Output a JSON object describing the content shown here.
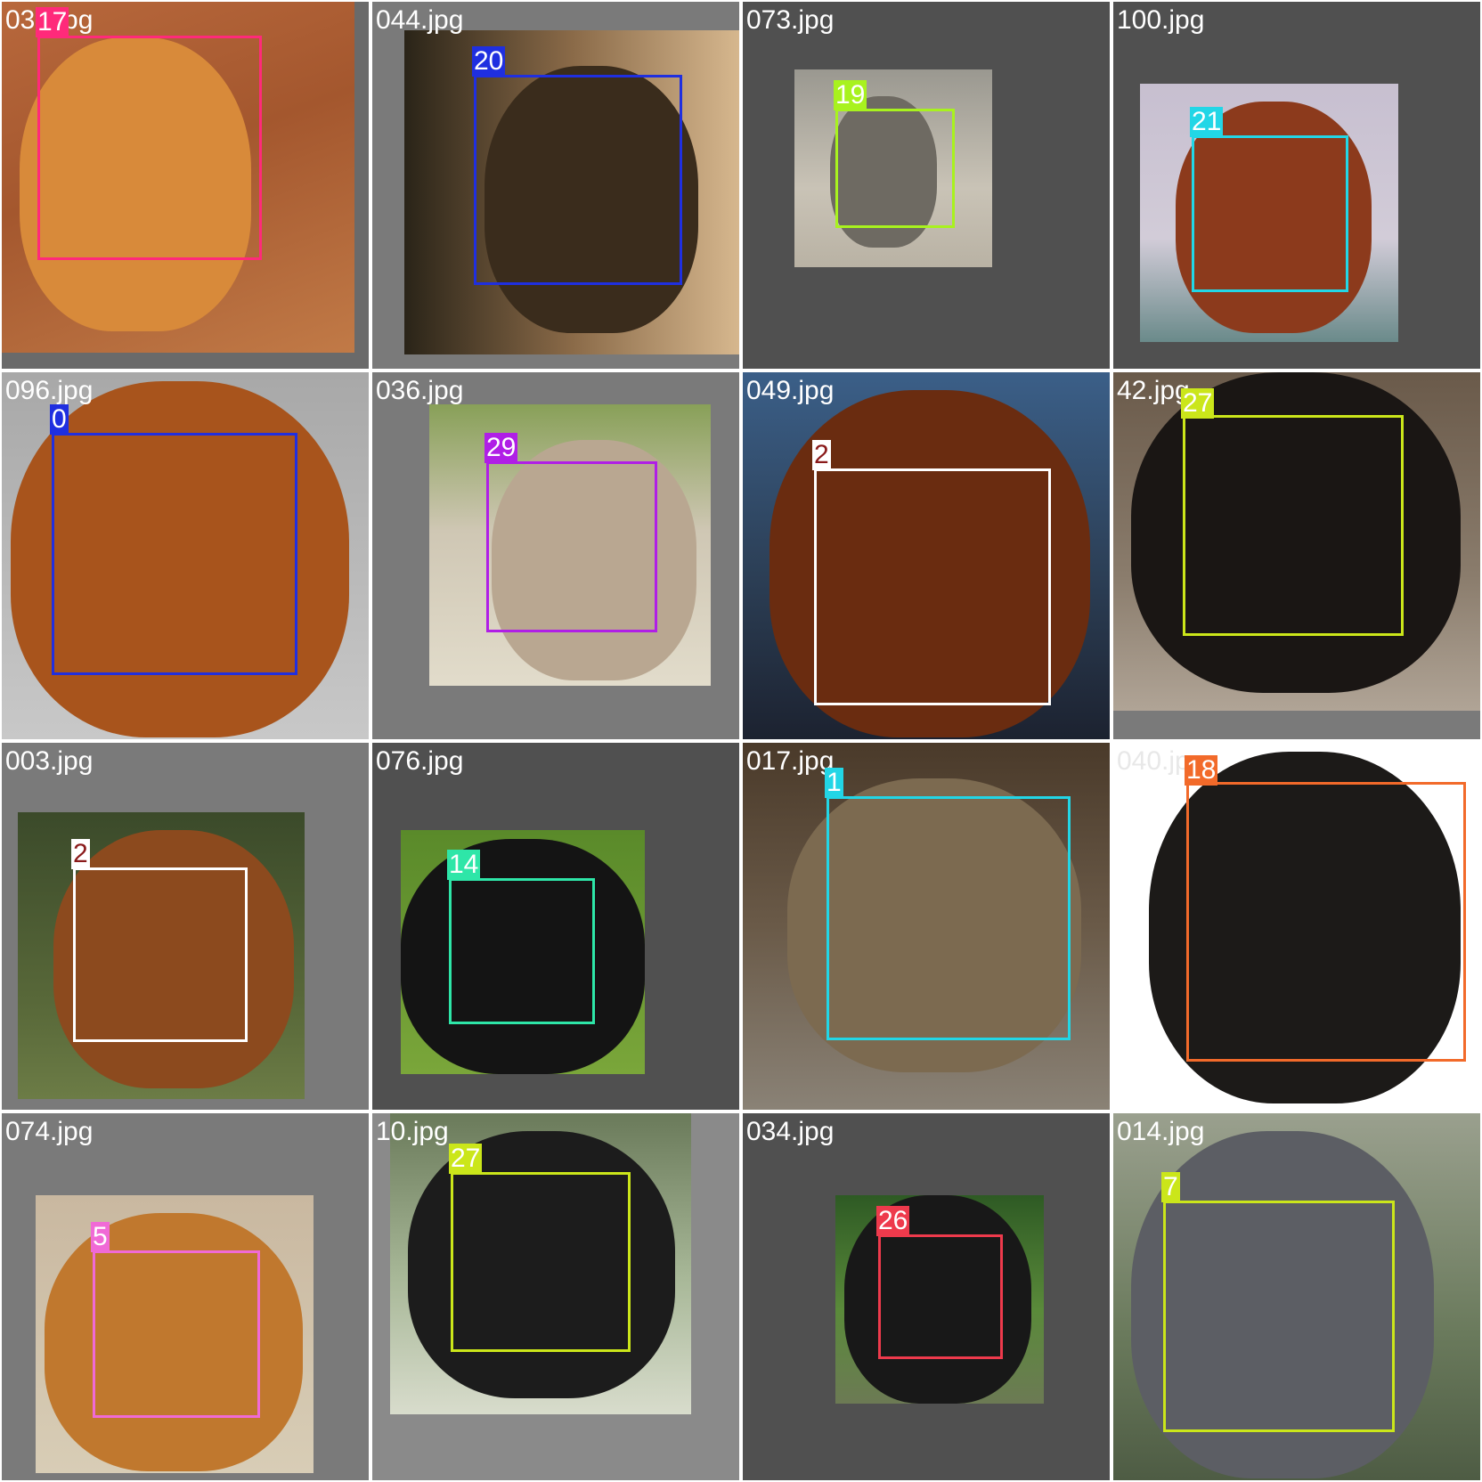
{
  "tiles": [
    {
      "file": "03?.jpg",
      "label": "17",
      "color": "#ff2a7a",
      "fileVisible": "03",
      "labelDark": false
    },
    {
      "file": "044.jpg",
      "label": "20",
      "color": "#1f2fe0",
      "labelDark": false
    },
    {
      "file": "073.jpg",
      "label": "19",
      "color": "#a8f21e",
      "labelDark": false
    },
    {
      "file": "100.jpg",
      "label": "21",
      "color": "#22d6e6",
      "labelDark": false
    },
    {
      "file": "096.jpg",
      "label": "0",
      "color": "#1f2fe0",
      "labelDark": false
    },
    {
      "file": "036.jpg",
      "label": "29",
      "color": "#b01ee6",
      "labelDark": false
    },
    {
      "file": "049.jpg",
      "label": "2",
      "color": "#ffffff",
      "labelDark": true
    },
    {
      "file": "42.jpg",
      "label": "27",
      "color": "#cbe61a",
      "labelDark": false
    },
    {
      "file": "003.jpg",
      "label": "2",
      "color": "#ffffff",
      "labelDark": true
    },
    {
      "file": "076.jpg",
      "label": "14",
      "color": "#2ee6a8",
      "labelDark": false
    },
    {
      "file": "017.jpg",
      "label": "1",
      "color": "#22d6e6",
      "labelDark": false
    },
    {
      "file": "040.jpg",
      "label": "18",
      "color": "#f26a2a",
      "labelDark": false
    },
    {
      "file": "074.jpg",
      "label": "5",
      "color": "#f06ad6",
      "labelDark": false
    },
    {
      "file": "10.jpg",
      "label": "27",
      "color": "#cbe61a",
      "labelDark": false
    },
    {
      "file": "034.jpg",
      "label": "26",
      "color": "#ee3a4c",
      "labelDark": false
    },
    {
      "file": "014.jpg",
      "label": "7",
      "color": "#cbe61a",
      "labelDark": false
    }
  ]
}
